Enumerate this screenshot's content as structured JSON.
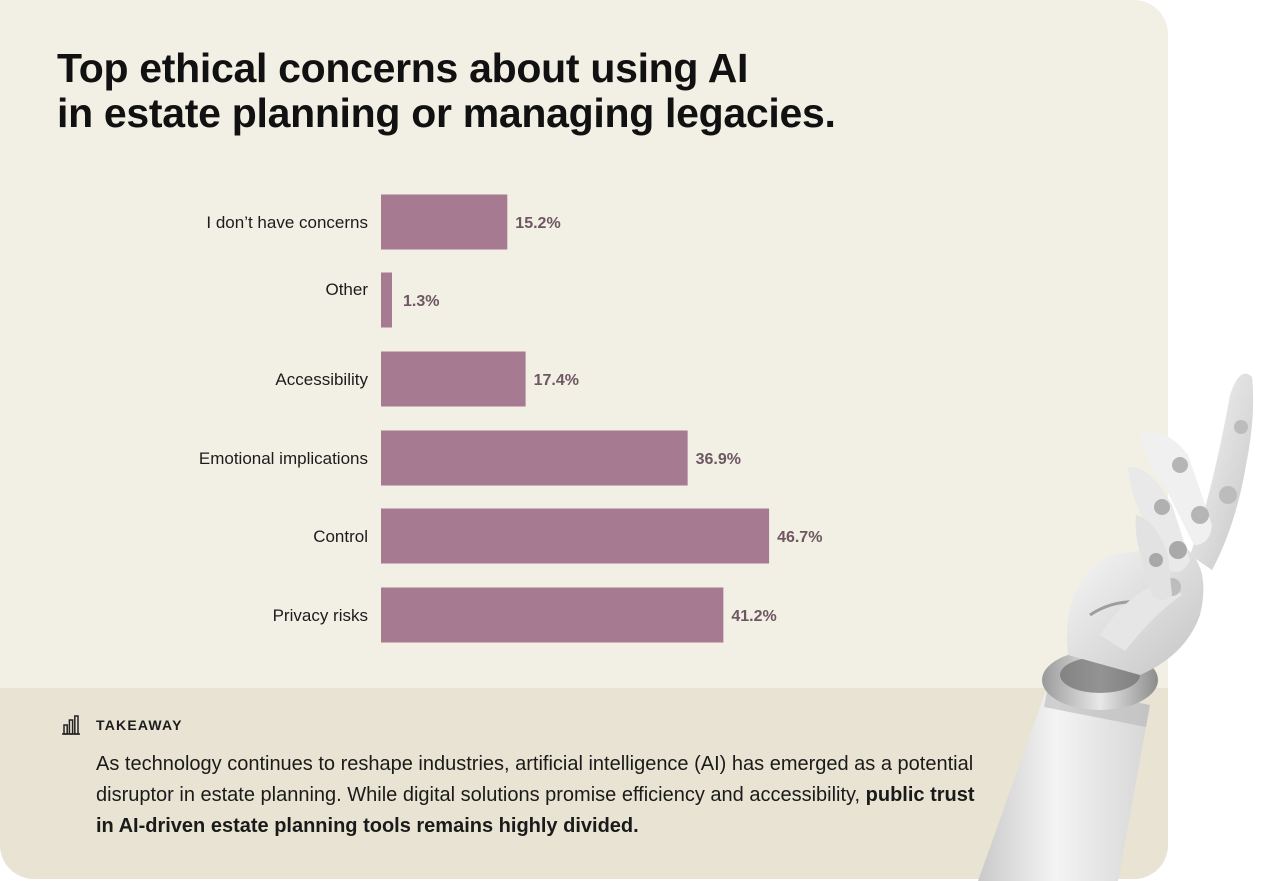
{
  "title": {
    "line1": "Top ethical concerns about using AI",
    "line2": "in estate planning or managing legacies."
  },
  "chart_data": {
    "type": "bar",
    "orientation": "horizontal",
    "categories": [
      "I don’t have concerns",
      "Other",
      "Accessibility",
      "Emotional implications",
      "Control",
      "Privacy risks"
    ],
    "values": [
      15.2,
      1.3,
      17.4,
      36.9,
      46.7,
      41.2
    ],
    "value_labels": [
      "15.2%",
      "1.3%",
      "17.4%",
      "36.9%",
      "46.7%",
      "41.2%"
    ],
    "unit": "%",
    "xlim": [
      0,
      100
    ],
    "grid": false,
    "bar_color": "#a67a90",
    "value_label_color": "#6d5762"
  },
  "takeaway": {
    "label": "TAKEAWAY",
    "icon": "bar-chart-icon",
    "text_plain": "As technology continues to reshape industries, artificial intelligence (AI) has emerged as a potential disruptor in estate planning. While digital solutions promise efficiency and accessibility, ",
    "text_bold": "public trust in AI-driven estate planning tools remains highly divided."
  },
  "colors": {
    "card_background": "#f2efe4",
    "takeaway_background": "#e8e3d2",
    "title_text": "#111111"
  },
  "decorations": {
    "image": "robotic-hand-illustration"
  }
}
